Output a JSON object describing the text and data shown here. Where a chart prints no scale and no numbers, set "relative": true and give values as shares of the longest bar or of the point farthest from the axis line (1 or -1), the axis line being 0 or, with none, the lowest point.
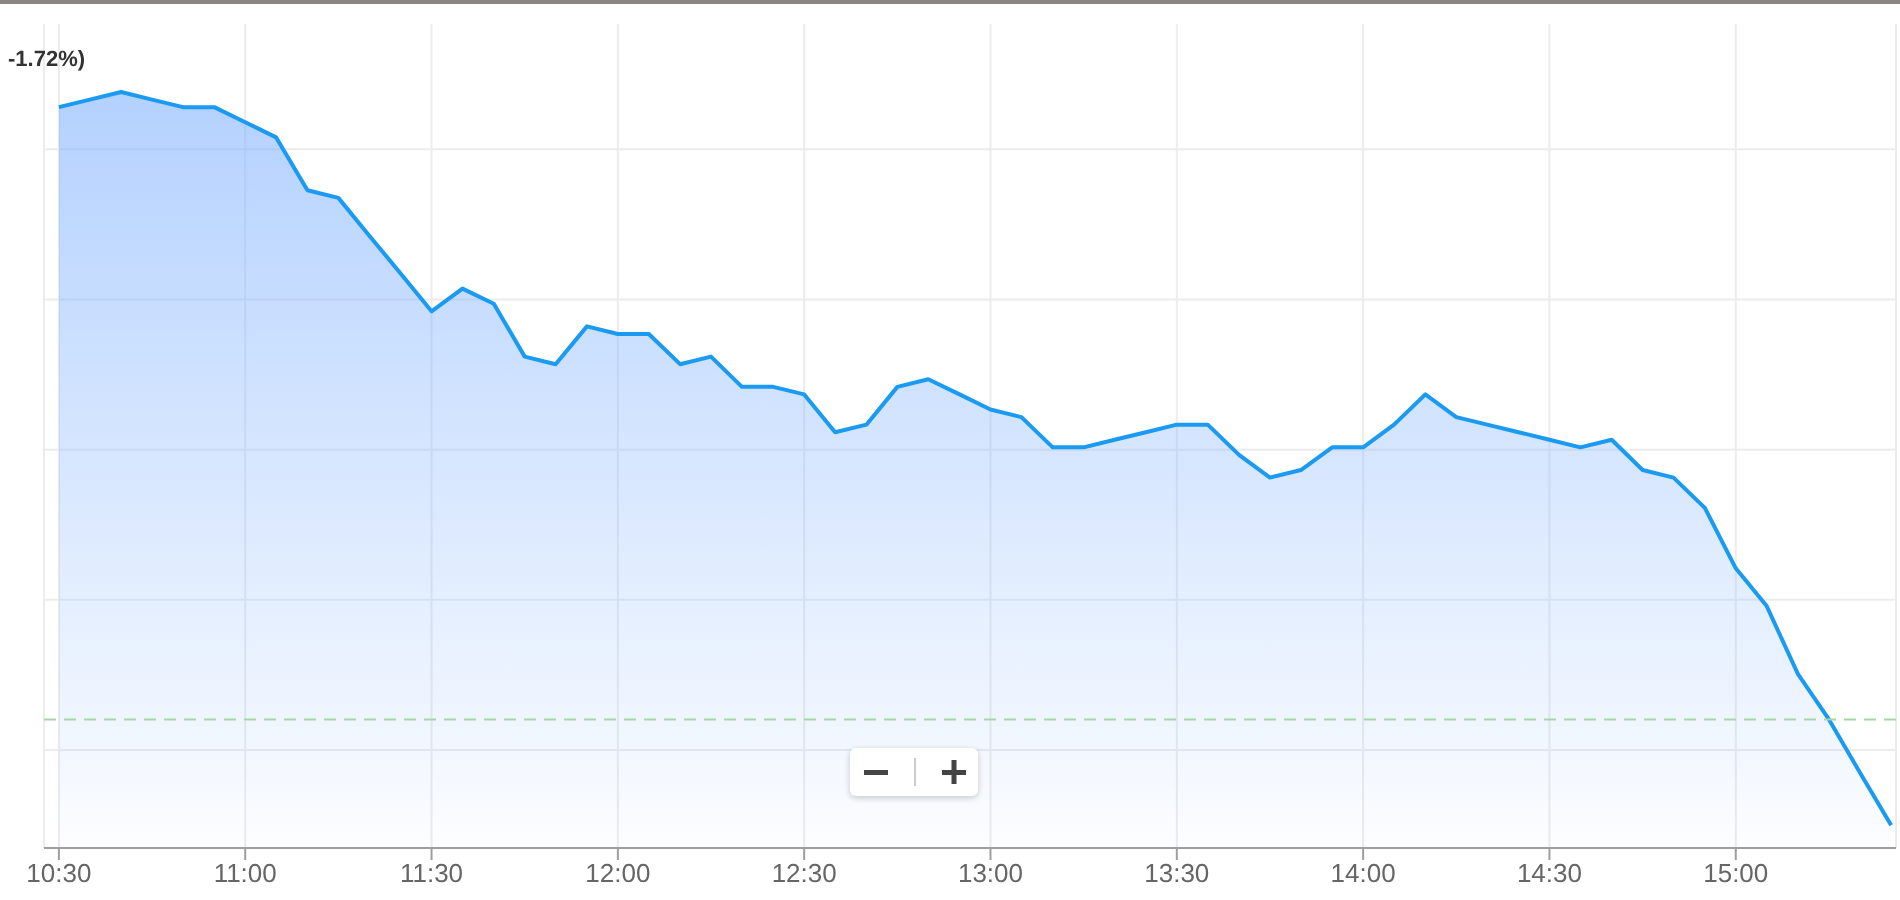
{
  "chart_data": {
    "type": "area",
    "relative": true,
    "annotations": [
      "-1.72%)"
    ],
    "x": [
      10.5,
      10.583,
      10.667,
      10.75,
      10.833,
      10.917,
      11.0,
      11.083,
      11.167,
      11.25,
      11.333,
      11.417,
      11.5,
      11.583,
      11.667,
      11.75,
      11.833,
      11.917,
      12.0,
      12.083,
      12.167,
      12.25,
      12.333,
      12.417,
      12.5,
      12.583,
      12.667,
      12.75,
      12.833,
      12.917,
      13.0,
      13.083,
      13.167,
      13.25,
      13.333,
      13.417,
      13.5,
      13.583,
      13.667,
      13.75,
      13.833,
      13.917,
      14.0,
      14.083,
      14.167,
      14.25,
      14.333,
      14.417,
      14.5,
      14.583,
      14.667,
      14.75,
      14.833,
      14.917,
      15.0,
      15.083,
      15.167,
      15.25,
      15.333,
      15.417
    ],
    "series": [
      {
        "color": "#1a9af0",
        "values": [
          0.98,
          0.99,
          1.0,
          0.99,
          0.98,
          0.98,
          0.96,
          0.94,
          0.87,
          0.86,
          0.81,
          0.76,
          0.71,
          0.74,
          0.72,
          0.65,
          0.64,
          0.69,
          0.68,
          0.68,
          0.64,
          0.65,
          0.61,
          0.61,
          0.6,
          0.55,
          0.56,
          0.61,
          0.62,
          0.6,
          0.58,
          0.57,
          0.53,
          0.53,
          0.54,
          0.55,
          0.56,
          0.56,
          0.52,
          0.49,
          0.5,
          0.53,
          0.53,
          0.56,
          0.6,
          0.57,
          0.56,
          0.55,
          0.54,
          0.53,
          0.54,
          0.5,
          0.49,
          0.45,
          0.37,
          0.32,
          0.23,
          0.17,
          0.1,
          0.03
        ]
      }
    ],
    "xlim": [
      10.46,
      15.43
    ],
    "xticks": [
      {
        "value": 10.5,
        "label": "10:30"
      },
      {
        "value": 11,
        "label": "11:00"
      },
      {
        "value": 11.5,
        "label": "11:30"
      },
      {
        "value": 12,
        "label": "12:00"
      },
      {
        "value": 12.5,
        "label": "12:30"
      },
      {
        "value": 13,
        "label": "13:00"
      },
      {
        "value": 13.5,
        "label": "13:30"
      },
      {
        "value": 14,
        "label": "14:00"
      },
      {
        "value": 14.5,
        "label": "14:30"
      },
      {
        "value": 15,
        "label": "15:00"
      }
    ],
    "ref_lines": [
      {
        "axis": "y",
        "value": 0.17,
        "color": "#a5d6a7",
        "line_style": "dashed"
      }
    ],
    "grid": true,
    "marker": "none",
    "line_style": "solid"
  }
}
